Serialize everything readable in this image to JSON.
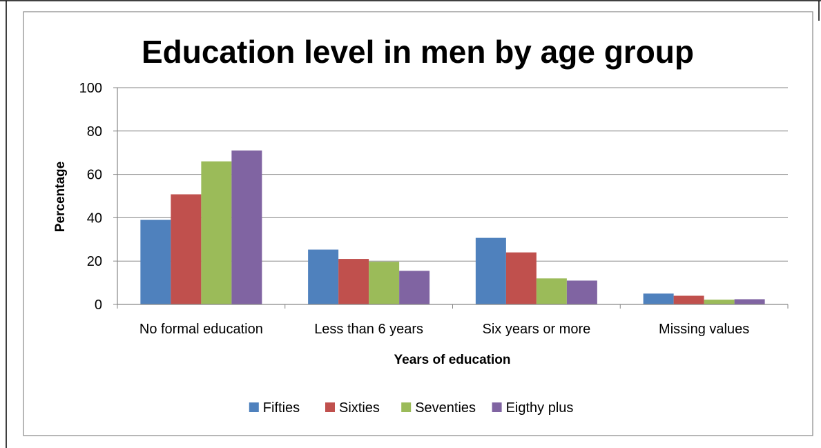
{
  "chart_data": {
    "type": "bar",
    "title": "Education level in men by age group",
    "xlabel": "Years of education",
    "ylabel": "Percentage",
    "categories": [
      "No formal education",
      "Less than 6 years",
      "Six years or more",
      "Missing values"
    ],
    "series": [
      {
        "name": "Fifties",
        "color": "#4F81BD",
        "values": [
          39,
          25.3,
          30.7,
          5
        ]
      },
      {
        "name": "Sixties",
        "color": "#C0504D",
        "values": [
          50.8,
          21,
          24,
          4
        ]
      },
      {
        "name": "Seventies",
        "color": "#9BBB59",
        "values": [
          66,
          19.7,
          12,
          2.2
        ]
      },
      {
        "name": "Eigthy plus",
        "color": "#8064A2",
        "values": [
          71,
          15.5,
          11,
          2.4
        ]
      }
    ],
    "ylim": [
      0,
      100
    ],
    "yticks": [
      0,
      20,
      40,
      60,
      80,
      100
    ],
    "grid": true,
    "legend_position": "bottom"
  }
}
